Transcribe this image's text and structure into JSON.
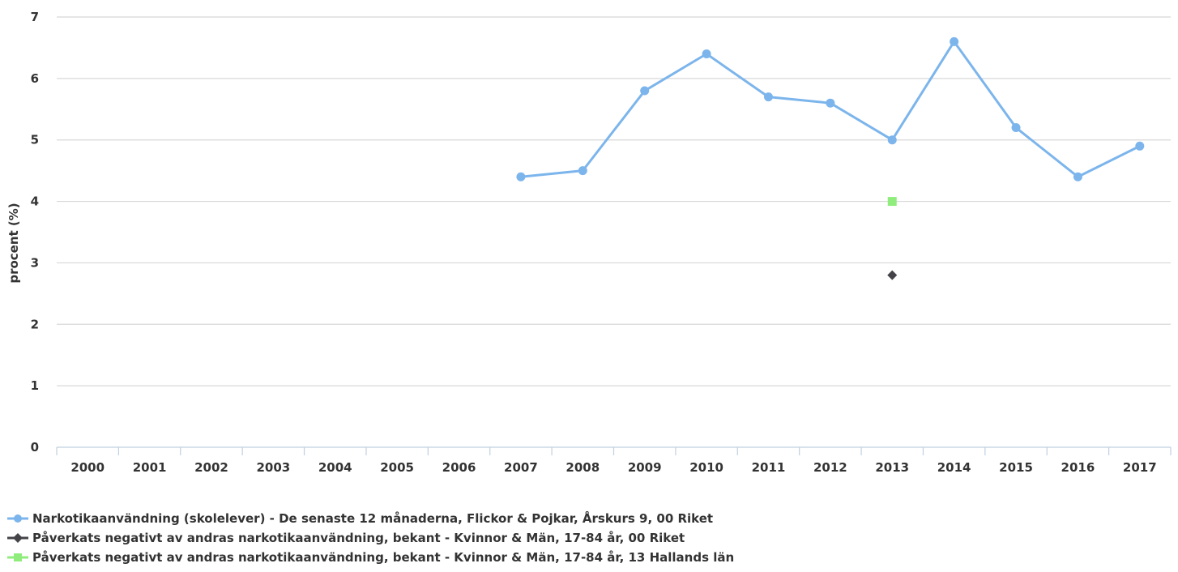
{
  "chart_data": {
    "type": "line",
    "title": "",
    "xlabel": "",
    "ylabel": "procent (%)",
    "categories": [
      "2000",
      "2001",
      "2002",
      "2003",
      "2004",
      "2005",
      "2006",
      "2007",
      "2008",
      "2009",
      "2010",
      "2011",
      "2012",
      "2013",
      "2014",
      "2015",
      "2016",
      "2017"
    ],
    "ylim": [
      0,
      7
    ],
    "yticks": [
      "0",
      "1",
      "2",
      "3",
      "4",
      "5",
      "6",
      "7"
    ],
    "grid": true,
    "legend_position": "bottom-left",
    "series": [
      {
        "name": "Narkotikaanvändning (skolelever) - De senaste 12 månaderna, Flickor & Pojkar, Årskurs 9, 00 Riket",
        "color": "#7cb5ec",
        "marker": "circle",
        "values": [
          null,
          null,
          null,
          null,
          null,
          null,
          null,
          4.4,
          4.5,
          5.8,
          6.4,
          5.7,
          5.6,
          5.0,
          6.6,
          5.2,
          4.4,
          4.9
        ]
      },
      {
        "name": "Påverkats negativt av andras narkotikaanvändning, bekant - Kvinnor & Män, 17-84 år, 00 Riket",
        "color": "#434348",
        "marker": "diamond",
        "values": [
          null,
          null,
          null,
          null,
          null,
          null,
          null,
          null,
          null,
          null,
          null,
          null,
          null,
          2.8,
          null,
          null,
          null,
          null
        ]
      },
      {
        "name": "Påverkats negativt av andras narkotikaanvändning, bekant - Kvinnor & Män, 17-84 år, 13 Hallands län",
        "color": "#90ed7d",
        "marker": "square",
        "values": [
          null,
          null,
          null,
          null,
          null,
          null,
          null,
          null,
          null,
          null,
          null,
          null,
          null,
          4.0,
          null,
          null,
          null,
          null
        ]
      }
    ]
  }
}
